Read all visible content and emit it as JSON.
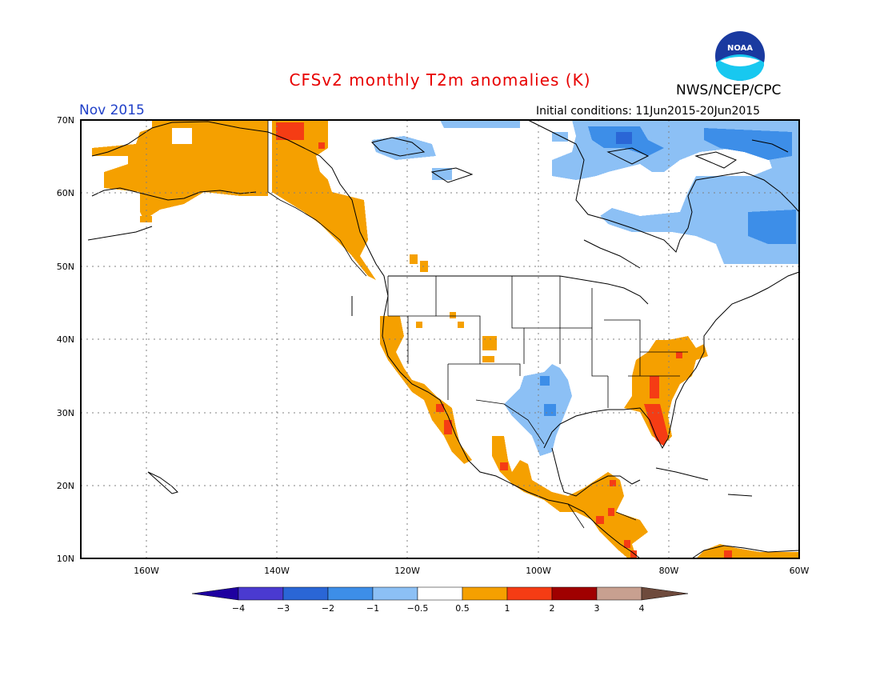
{
  "header": {
    "title": "CFSv2 monthly T2m anomalies (K)",
    "organization": "NWS/NCEP/CPC",
    "logo_text": "NOAA",
    "month": "Nov 2015",
    "initial_conditions": "Initial conditions: 11Jun2015-20Jun2015"
  },
  "map": {
    "lon_range": [
      -170,
      -60
    ],
    "lat_range": [
      10,
      70
    ],
    "lat_ticks": [
      "70N",
      "60N",
      "50N",
      "40N",
      "30N",
      "20N",
      "10N"
    ],
    "lon_ticks": [
      "160W",
      "140W",
      "120W",
      "100W",
      "80W",
      "60W"
    ],
    "grid": "dotted"
  },
  "colorbar": {
    "labels": [
      "−4",
      "−3",
      "−2",
      "−1",
      "−0.5",
      "0.5",
      "1",
      "2",
      "3",
      "4"
    ],
    "colors": [
      "#1e00a0",
      "#4a3ad0",
      "#2a66d6",
      "#3d8ee8",
      "#8cc0f5",
      "#ffffff",
      "#f5a000",
      "#f53c14",
      "#a00000",
      "#c8a090",
      "#6e4a3c"
    ]
  },
  "colors": {
    "warm1": "#f5a000",
    "warm2": "#f53c14",
    "cool1": "#8cc0f5",
    "cool2": "#3d8ee8",
    "cool3": "#2a66d6",
    "coast": "#000000"
  }
}
